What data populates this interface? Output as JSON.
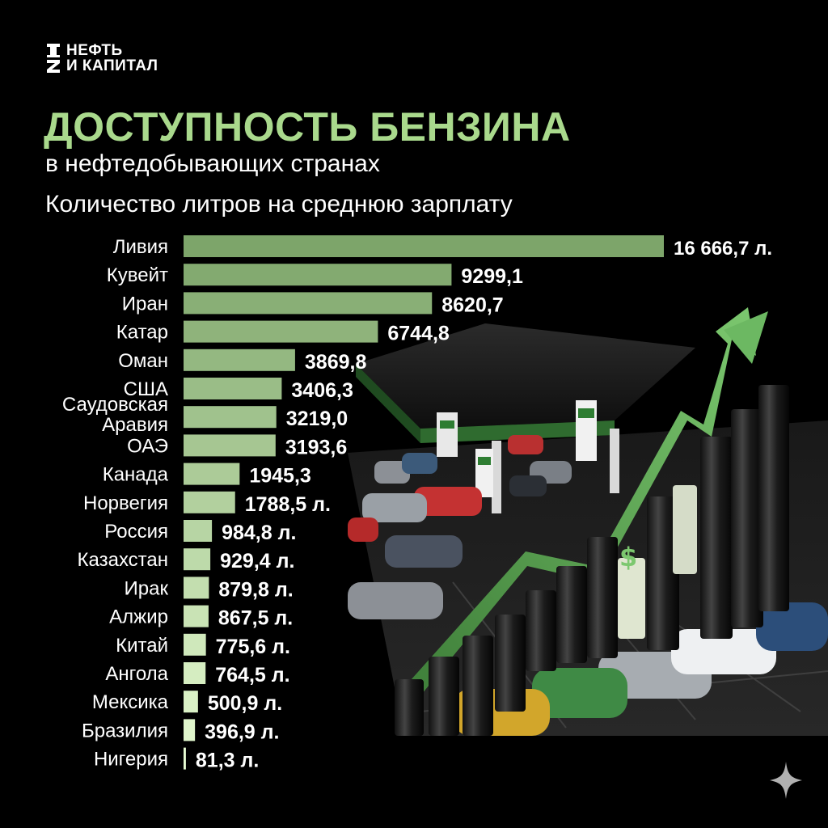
{
  "logo": {
    "line1": "НЕФТЬ",
    "line2": "И КАПИТАЛ"
  },
  "header": {
    "title": "ДОСТУПНОСТЬ БЕНЗИНА",
    "subtitle": "в нефтедобывающих странах",
    "chart_subtitle": "Количество литров на среднюю зарплату"
  },
  "colors": {
    "title": "#a9d98c",
    "bar_dark": "#7da56a",
    "bar_light": "#e6fbd2"
  },
  "chart_data": {
    "type": "bar",
    "orientation": "horizontal",
    "title": "ДОСТУПНОСТЬ БЕНЗИНА",
    "subtitle": "Количество литров на среднюю зарплату",
    "categories": [
      [
        "Ливия"
      ],
      [
        "Кувейт"
      ],
      [
        "Иран"
      ],
      [
        "Катар"
      ],
      [
        "Оман"
      ],
      [
        "США"
      ],
      [
        "Саудовская",
        "Аравия"
      ],
      [
        "ОАЭ"
      ],
      [
        "Канада"
      ],
      [
        "Норвегия"
      ],
      [
        "Россия"
      ],
      [
        "Казахстан"
      ],
      [
        "Ирак"
      ],
      [
        "Алжир"
      ],
      [
        "Китай"
      ],
      [
        "Ангола"
      ],
      [
        "Мексика"
      ],
      [
        "Бразилия"
      ],
      [
        "Нигерия"
      ]
    ],
    "values": [
      16666.7,
      9299.1,
      8620.7,
      6744.8,
      3869.8,
      3406.3,
      3219.0,
      3193.6,
      1945.3,
      1788.5,
      984.8,
      929.4,
      879.8,
      867.5,
      775.6,
      764.5,
      500.9,
      396.9,
      81.3
    ],
    "value_labels": [
      "16 666,7 л.",
      "9299,1",
      "8620,7",
      "6744,8",
      "3869,8",
      "3406,3",
      "3219,0",
      "3193,6",
      "1945,3",
      "1788,5 л.",
      "984,8 л.",
      "929,4 л.",
      "879,8 л.",
      "867,5 л.",
      "775,6 л.",
      "764,5 л.",
      "500,9 л.",
      "396,9 л.",
      "81,3 л."
    ],
    "xlim": [
      0,
      16666.7
    ],
    "grid": false,
    "legend": "none"
  }
}
